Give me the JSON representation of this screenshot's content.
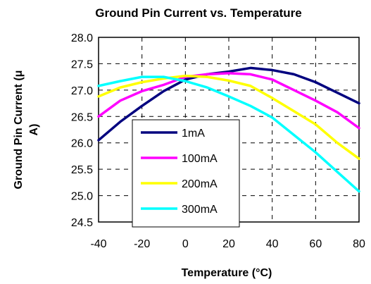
{
  "chart_data": {
    "type": "line",
    "title": "Ground Pin Current vs. Temperature",
    "xlabel": "Temperature (°C)",
    "ylabel_line1": "Ground Pin Current (μ",
    "ylabel_line2": "A)",
    "xlim": [
      -40,
      80
    ],
    "ylim": [
      24.5,
      28.0
    ],
    "x_ticks": [
      -40,
      -20,
      0,
      20,
      40,
      60,
      80
    ],
    "y_ticks": [
      "24.5",
      "25.0",
      "25.5",
      "26.0",
      "26.5",
      "27.0",
      "27.5",
      "28.0"
    ],
    "grid": true,
    "legend_position": "lower-left",
    "series": [
      {
        "name": "1mA",
        "color": "#00007f",
        "x": [
          -40,
          -30,
          -20,
          -10,
          0,
          10,
          20,
          30,
          40,
          50,
          60,
          70,
          80
        ],
        "y": [
          26.05,
          26.4,
          26.7,
          26.98,
          27.2,
          27.3,
          27.35,
          27.42,
          27.38,
          27.3,
          27.15,
          26.95,
          26.75
        ]
      },
      {
        "name": "100mA",
        "color": "#ff00ff",
        "x": [
          -40,
          -30,
          -20,
          -10,
          0,
          10,
          20,
          30,
          40,
          50,
          60,
          70,
          80
        ],
        "y": [
          26.5,
          26.8,
          26.98,
          27.1,
          27.25,
          27.3,
          27.32,
          27.3,
          27.2,
          27.0,
          26.8,
          26.58,
          26.28
        ]
      },
      {
        "name": "200mA",
        "color": "#ffff00",
        "x": [
          -40,
          -30,
          -20,
          -10,
          0,
          10,
          20,
          30,
          40,
          50,
          60,
          70,
          80
        ],
        "y": [
          26.88,
          27.05,
          27.15,
          27.22,
          27.27,
          27.25,
          27.18,
          27.08,
          26.85,
          26.6,
          26.35,
          26.0,
          25.7
        ]
      },
      {
        "name": "300mA",
        "color": "#00ffff",
        "x": [
          -40,
          -30,
          -20,
          -10,
          0,
          10,
          20,
          30,
          40,
          50,
          60,
          70,
          80
        ],
        "y": [
          27.08,
          27.17,
          27.25,
          27.25,
          27.17,
          27.05,
          26.88,
          26.7,
          26.48,
          26.15,
          25.82,
          25.45,
          25.08
        ]
      }
    ]
  }
}
